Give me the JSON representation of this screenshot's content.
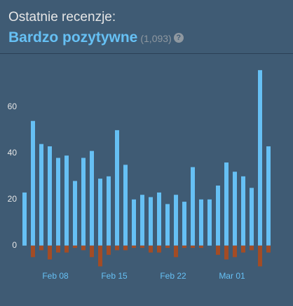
{
  "chart_data": {
    "type": "bar",
    "title": "Ostatnie recenzje:",
    "subtitle": "Bardzo pozytywne",
    "annotations": [
      "(1,093)",
      "?"
    ],
    "categories": [
      null,
      null,
      null,
      null,
      "Feb 08",
      null,
      null,
      null,
      null,
      null,
      null,
      "Feb 15",
      null,
      null,
      null,
      null,
      null,
      null,
      "Feb 22",
      null,
      null,
      null,
      null,
      null,
      null,
      "Mar 01",
      null,
      null,
      null,
      null
    ],
    "series": [
      {
        "color": "#66c0f4",
        "values": [
          23,
          54,
          44,
          43,
          38,
          39,
          28,
          38,
          41,
          29,
          30,
          50,
          35,
          20,
          22,
          21,
          23,
          18,
          22,
          19,
          34,
          20,
          20,
          26,
          36,
          32,
          30,
          25,
          76,
          43
        ]
      },
      {
        "color": "#a34c25",
        "values": [
          0,
          -5,
          -2,
          -6,
          -3,
          -3,
          -1,
          -2,
          -5,
          -9,
          -4,
          -2,
          -2,
          -1,
          -1,
          -3,
          -3,
          -1,
          -5,
          -1,
          -1,
          -1,
          0,
          -4,
          -6,
          -5,
          -3,
          -2,
          -9,
          -3
        ]
      }
    ],
    "ylim": [
      -11,
      80
    ],
    "yticks": [
      0,
      20,
      40,
      60
    ],
    "grid": false
  }
}
